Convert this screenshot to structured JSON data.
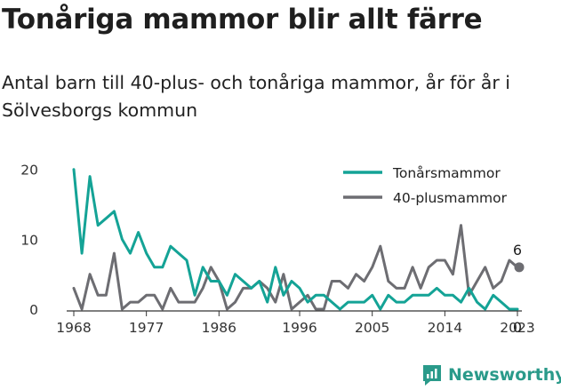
{
  "title": "Tonåriga mammor blir allt färre",
  "subtitle": "Antal barn till 40-plus- och tonåriga mammor, år för år i Sölvesborgs kommun",
  "brand": "Newsworthy",
  "colors": {
    "teen": "#14a396",
    "plus40": "#6d6d72",
    "axis": "#333333"
  },
  "chart_data": {
    "type": "line",
    "x": [
      1968,
      1969,
      1970,
      1971,
      1972,
      1973,
      1974,
      1975,
      1976,
      1977,
      1978,
      1979,
      1980,
      1981,
      1982,
      1983,
      1984,
      1985,
      1986,
      1987,
      1988,
      1989,
      1990,
      1991,
      1992,
      1993,
      1994,
      1995,
      1996,
      1997,
      1998,
      1999,
      2000,
      2001,
      2002,
      2003,
      2004,
      2005,
      2006,
      2007,
      2008,
      2009,
      2010,
      2011,
      2012,
      2013,
      2014,
      2015,
      2016,
      2017,
      2018,
      2019,
      2020,
      2021,
      2022,
      2023
    ],
    "series": [
      {
        "name": "Tonårsmammor",
        "color": "#14a396",
        "values": [
          20,
          8,
          19,
          12,
          13,
          14,
          10,
          8,
          11,
          8,
          6,
          6,
          9,
          8,
          7,
          2,
          6,
          4,
          4,
          2,
          5,
          4,
          3,
          4,
          1,
          6,
          2,
          4,
          3,
          1,
          2,
          2,
          1,
          0,
          1,
          1,
          1,
          2,
          0,
          2,
          1,
          1,
          2,
          2,
          2,
          3,
          2,
          2,
          1,
          3,
          1,
          0,
          2,
          1,
          0,
          0
        ]
      },
      {
        "name": "40-plusmammor",
        "color": "#6d6d72",
        "values": [
          3,
          0,
          5,
          2,
          2,
          8,
          0,
          1,
          1,
          2,
          2,
          0,
          3,
          1,
          1,
          1,
          3,
          6,
          4,
          0,
          1,
          3,
          3,
          4,
          3,
          1,
          5,
          0,
          1,
          2,
          0,
          0,
          4,
          4,
          3,
          5,
          4,
          6,
          9,
          4,
          3,
          3,
          6,
          3,
          6,
          7,
          7,
          5,
          12,
          2,
          4,
          6,
          3,
          4,
          7,
          6
        ]
      }
    ],
    "xticks": [
      "1968",
      "1977",
      "1986",
      "1996",
      "2005",
      "2014",
      "2023"
    ],
    "yticks": [
      "0",
      "10",
      "20"
    ],
    "ylim": [
      0,
      22
    ],
    "xlim": [
      1968,
      2023
    ],
    "legend": "top-right",
    "end_labels": {
      "teen": "0",
      "plus40": "6"
    },
    "grid": false
  }
}
